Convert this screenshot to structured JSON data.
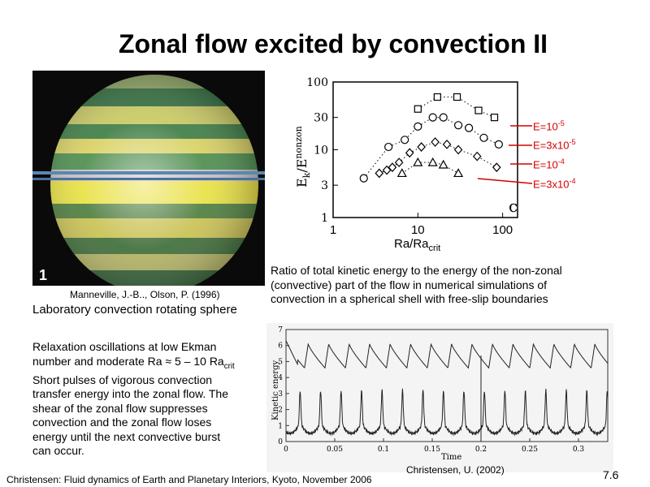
{
  "slide": {
    "title": "Zonal flow excited by convection II",
    "page_number": "7.6",
    "footer": "Christensen: Fluid dynamics of Earth and Planetary Interiors, Kyoto, November 2006"
  },
  "left_panel": {
    "photo_label": "1",
    "photo_credit": "Manneville, J.-B.., Olson, P. (1996)",
    "caption": "Laboratory convection rotating sphere",
    "desc_line1": "Relaxation oscillations at low Ekman",
    "desc_line2_pre": "number and moderate Ra ≈ 5 – 10 Ra",
    "desc_line2_sub": "crit",
    "desc_line3": "Short pulses of vigorous convection",
    "desc_line4": "transfer energy into the zonal flow.  The",
    "desc_line5": "shear of the zonal flow suppresses",
    "desc_line6": "convection and the zonal flow loses",
    "desc_line7": "energy until the next convective burst",
    "desc_line8": "can occur."
  },
  "right_panel": {
    "chart_caption_1": "Ratio of total kinetic energy to the energy of the non-zonal",
    "chart_caption_2": "(convective) part of the flow in numerical simulations of",
    "chart_caption_3": "convection in a spherical shell with free-slip boundaries",
    "credit": "Christensen, U. (2002)"
  },
  "legend": {
    "e1_base": "E=10",
    "e1_exp": "-5",
    "e2_base": "E=3x10",
    "e2_exp": "-5",
    "e3_base": "E=10",
    "e3_exp": "-4",
    "e4_base": "E=3x10",
    "e4_exp": "-4",
    "color": "#d40000"
  },
  "chart_data": [
    {
      "type": "scatter",
      "xscale": "log",
      "yscale": "log",
      "xlabel": "Ra/Ra",
      "xlabel_sub": "crit",
      "ylabel": "E",
      "ylabel_sub": "k",
      "ylabel_mid": "/E",
      "ylabel_sup": "nonzon",
      "panel_label": "c",
      "x_ticks": [
        "1",
        "10",
        "100"
      ],
      "y_ticks": [
        "1",
        "3",
        "10",
        "30",
        "100"
      ],
      "xlim": [
        1,
        150
      ],
      "ylim": [
        1,
        100
      ],
      "series": [
        {
          "marker": "square",
          "x": [
            10,
            17,
            29,
            52,
            80
          ],
          "y": [
            40,
            60,
            60,
            38,
            30
          ]
        },
        {
          "marker": "circle",
          "x": [
            2.3,
            4.5,
            7,
            10,
            15,
            20,
            30,
            40,
            60,
            90
          ],
          "y": [
            3.8,
            11,
            14,
            22,
            30,
            30,
            23,
            21,
            15,
            12
          ]
        },
        {
          "marker": "diamond",
          "x": [
            3.5,
            4.3,
            5,
            6,
            8,
            11,
            16,
            22,
            30,
            50,
            85
          ],
          "y": [
            4.5,
            5,
            5.5,
            6.5,
            9,
            11,
            13,
            12,
            10,
            8,
            5.5
          ]
        },
        {
          "marker": "triangle",
          "x": [
            6.5,
            10,
            15,
            20,
            30
          ],
          "y": [
            4.5,
            6.5,
            6.5,
            6,
            4.5
          ]
        }
      ]
    },
    {
      "type": "line",
      "xlabel": "Time",
      "ylabel": "Kinetic energy",
      "x_ticks": [
        "0",
        "0.05",
        "0.1",
        "0.15",
        "0.2",
        "0.25",
        "0.3"
      ],
      "y_ticks": [
        "0",
        "1",
        "2",
        "3",
        "4",
        "5",
        "6",
        "7"
      ],
      "xlim": [
        0,
        0.33
      ],
      "ylim": [
        0,
        7
      ],
      "series": [
        {
          "description": "upper sawtooth",
          "period": 0.021,
          "max": 6.1,
          "min": 4.6
        },
        {
          "description": "lower spikes",
          "period": 0.021,
          "max": 3.2,
          "min": 0.5
        }
      ]
    }
  ]
}
